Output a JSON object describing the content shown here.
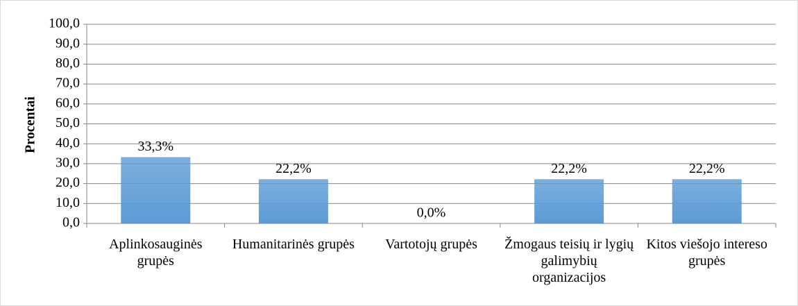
{
  "chart_data": {
    "type": "bar",
    "y_label": "Procentai",
    "categories": [
      "Aplinkosauginės grupės",
      "Humanitarinės grupės",
      "Vartotojų grupės",
      "Žmogaus teisių ir lygių galimybių organizacijos",
      "Kitos viešojo intereso grupės"
    ],
    "values": [
      33.3,
      22.2,
      0.0,
      22.2,
      22.2
    ],
    "value_labels": [
      "33,3%",
      "22,2%",
      "0,0%",
      "22,2%",
      "22,2%"
    ],
    "color": "#5b9bd5",
    "ylim": [
      0,
      100
    ],
    "yticks": [
      {
        "value": 0,
        "label": "0,0"
      },
      {
        "value": 10,
        "label": "10,0"
      },
      {
        "value": 20,
        "label": "20,0"
      },
      {
        "value": 30,
        "label": "30,0"
      },
      {
        "value": 40,
        "label": "40,0"
      },
      {
        "value": 50,
        "label": "50,0"
      },
      {
        "value": 60,
        "label": "60,0"
      },
      {
        "value": 70,
        "label": "70,0"
      },
      {
        "value": 80,
        "label": "80,0"
      },
      {
        "value": 90,
        "label": "90,0"
      },
      {
        "value": 100,
        "label": "100,0"
      }
    ],
    "grid": true
  }
}
